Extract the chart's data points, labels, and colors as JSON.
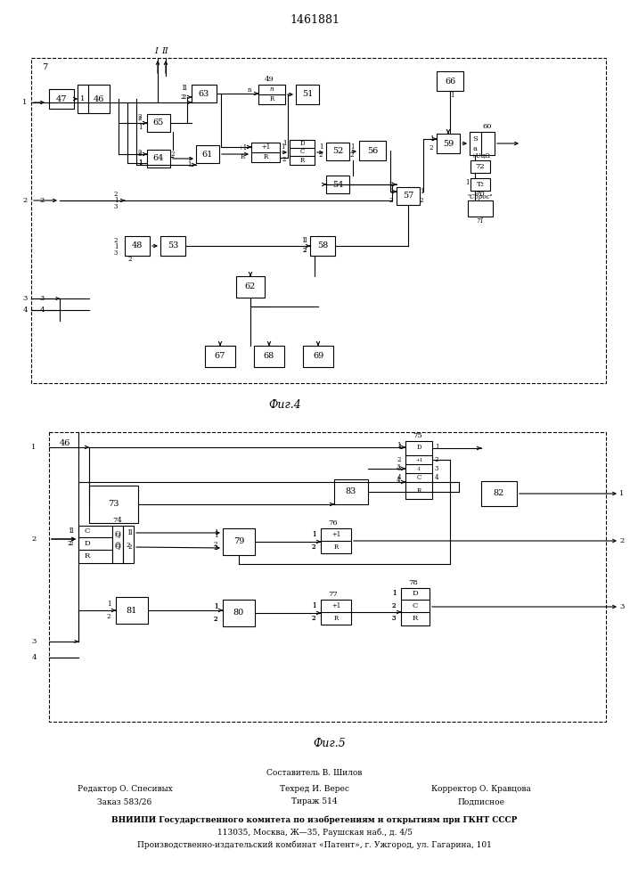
{
  "title": "1461881",
  "fig4_label": "Фиг.4",
  "fig5_label": "Фиг.5",
  "footer_line1": "Составитель В. Шилов",
  "footer_line2a": "Редактор О. Спесивых",
  "footer_line2b": "Техред И. Верес",
  "footer_line2c": "Корректор О. Кравцова",
  "footer_line3a": "Заказ 583/26",
  "footer_line3b": "Тираж 514",
  "footer_line3c": "Подписное",
  "footer_line4": "ВНИИПИ Государственного комитета по изобретениям и открытиям при ГКНТ СССР",
  "footer_line5": "113035, Москва, Ж—35, Раушская наб., д. 4/5",
  "footer_line6": "Производственно-издательский комбинат «Патент», г. Ужгород, ул. Гагарина, 101",
  "bg_color": "#ffffff"
}
